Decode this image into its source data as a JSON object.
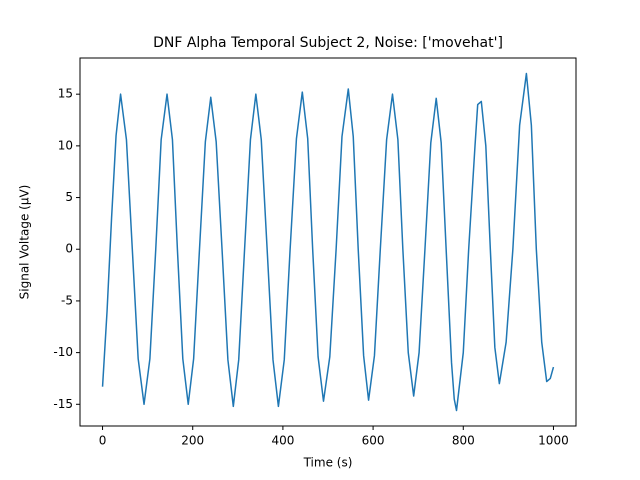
{
  "chart_data": {
    "type": "line",
    "title": "DNF Alpha Temporal Subject 2, Noise: ['movehat']",
    "x_label": "Time (s)",
    "y_label": "Signal Voltage (μV)",
    "x": [
      0,
      10,
      20,
      30,
      40,
      53,
      66,
      79,
      92,
      105,
      118,
      130,
      143,
      155,
      166,
      178,
      190,
      202,
      215,
      228,
      240,
      252,
      265,
      278,
      290,
      302,
      315,
      328,
      340,
      352,
      365,
      378,
      390,
      403,
      416,
      430,
      443,
      455,
      466,
      478,
      490,
      504,
      518,
      531,
      545,
      556,
      567,
      579,
      590,
      603,
      616,
      630,
      643,
      655,
      666,
      678,
      690,
      702,
      715,
      728,
      740,
      751,
      762,
      774,
      780,
      785,
      800,
      812,
      826,
      832,
      840,
      850,
      860,
      870,
      880,
      895,
      910,
      925,
      940,
      951,
      962,
      974,
      985,
      993,
      1000
    ],
    "series": [
      {
        "color": "#1f77b4",
        "values": [
          -13.3,
          -6,
          3,
          11,
          15,
          10.6,
          0,
          -10.6,
          -15,
          -10.6,
          0,
          10.6,
          15,
          10.6,
          0,
          -10.6,
          -15,
          -10.6,
          0,
          10.4,
          14.7,
          10.4,
          0,
          -10.7,
          -15.2,
          -10.7,
          0,
          10.6,
          15,
          10.6,
          0,
          -10.7,
          -15.2,
          -10.7,
          0,
          10.7,
          15.2,
          10.7,
          0,
          -10.4,
          -14.7,
          -10.4,
          0,
          10.9,
          15.5,
          10.9,
          0,
          -10.3,
          -14.6,
          -10.3,
          0,
          10.6,
          15,
          10.6,
          0,
          -10,
          -14.2,
          -10,
          0,
          10.3,
          14.6,
          10.3,
          0,
          -11,
          -14.5,
          -15.6,
          -10,
          0,
          10,
          14,
          14.3,
          10,
          0,
          -9.5,
          -13,
          -9,
          0,
          12,
          17,
          12,
          0,
          -9,
          -12.8,
          -12.5,
          -11.4
        ]
      }
    ],
    "xlim": [
      -50,
      1050
    ],
    "ylim": [
      -17.1,
      18.5
    ],
    "xticks": [
      0,
      200,
      400,
      600,
      800,
      1000
    ],
    "yticks": [
      -15,
      -10,
      -5,
      0,
      5,
      10,
      15
    ]
  }
}
